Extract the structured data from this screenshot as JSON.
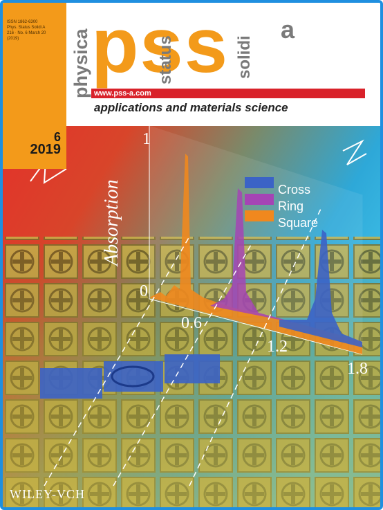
{
  "journal": {
    "issn_lines": [
      "ISSN 1862-6300",
      "Phys. Status Solidi A",
      "216 · No. 6 March 20",
      "(2019)"
    ],
    "word_physica": "physica",
    "word_status": "status",
    "word_solidi": "solidi",
    "big_letters": "pss",
    "superscript": "a",
    "url": "www.pss-a.com",
    "subtitle": "applications and materials science",
    "issue_number": "6",
    "issue_year": "2019",
    "publisher": "WILEY-VCH"
  },
  "colors": {
    "brand_orange": "#f39a1a",
    "brand_red": "#d9222a",
    "frame_blue": "#1f8fe0"
  },
  "cover_plot": {
    "ylabel": "Absorption",
    "y_ticks": [
      "0",
      "1"
    ],
    "x_ticks": [
      "0.6",
      "1.2",
      "1.8"
    ],
    "legend": [
      {
        "label": "Cross",
        "color": "#3b63c6"
      },
      {
        "label": "Ring",
        "color": "#a544b5"
      },
      {
        "label": "Square",
        "color": "#f0881e"
      }
    ]
  }
}
